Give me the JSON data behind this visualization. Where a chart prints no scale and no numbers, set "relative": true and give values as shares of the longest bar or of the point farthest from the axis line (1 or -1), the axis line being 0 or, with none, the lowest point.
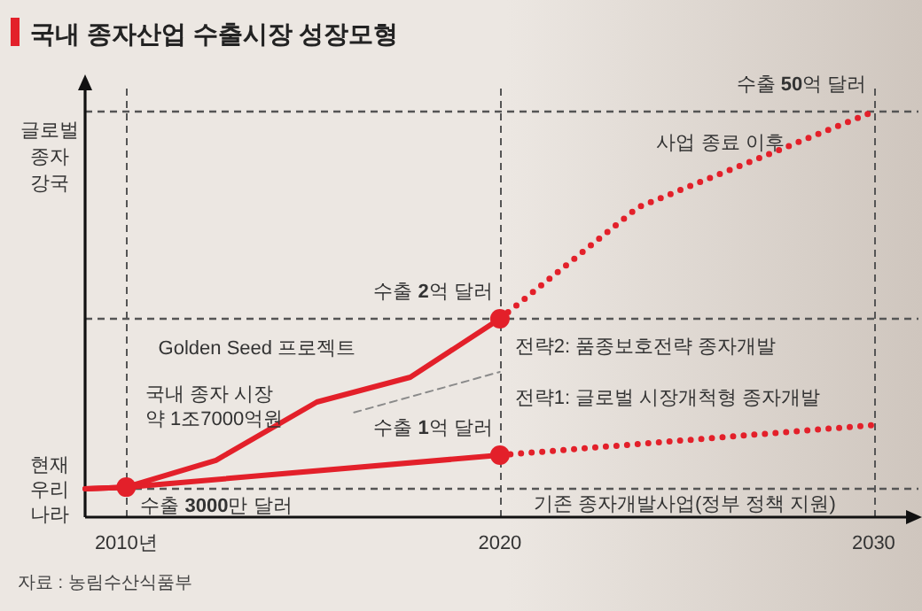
{
  "chart_data": {
    "type": "line",
    "relative": true,
    "title": "국내 종자산업 수출시장 성장모형",
    "xlim": [
      2008.9,
      2031.2
    ],
    "xticks": [
      {
        "value": 2010,
        "label": "2010년"
      },
      2020,
      2030
    ],
    "series": [
      {
        "color": "#e3202a",
        "line_style": "solid",
        "x": [
          2008.9,
          2010,
          2012.4,
          2015.1,
          2017.6,
          2020
        ],
        "values": [
          0.07,
          0.074,
          0.14,
          0.284,
          0.345,
          0.489
        ]
      },
      {
        "color": "#e3202a",
        "line_style": "dotted",
        "x": [
          2020,
          2023.7,
          2030
        ],
        "values": [
          0.489,
          0.764,
          1.0
        ]
      },
      {
        "color": "#e3202a",
        "line_style": "solid",
        "x": [
          2008.9,
          2010,
          2020
        ],
        "values": [
          0.07,
          0.074,
          0.153
        ]
      },
      {
        "color": "#e3202a",
        "line_style": "dotted",
        "x": [
          2020,
          2030
        ],
        "values": [
          0.153,
          0.227
        ]
      },
      {
        "color": "#8a8a8a",
        "line_style": "dashed",
        "x": [
          2016.1,
          2020
        ],
        "values": [
          0.258,
          0.358
        ]
      },
      {
        "type": "scatter",
        "marker": "circle",
        "color": "#e3202a",
        "x": [
          2010,
          2020,
          2020
        ],
        "values": [
          0.074,
          0.489,
          0.153
        ]
      }
    ],
    "ref_lines": [
      {
        "axis": "y",
        "value": 1.0,
        "color": "#555555",
        "line_style": "dashed"
      },
      {
        "axis": "y",
        "value": 0.489,
        "color": "#555555",
        "line_style": "dashed"
      },
      {
        "axis": "y",
        "value": 0.07,
        "color": "#555555",
        "line_style": "dashed"
      },
      {
        "axis": "x",
        "value": 2010,
        "color": "#555555",
        "line_style": "dashed"
      },
      {
        "axis": "x",
        "value": 2020,
        "color": "#555555",
        "line_style": "dashed"
      },
      {
        "axis": "x",
        "value": 2030,
        "color": "#555555",
        "line_style": "dashed"
      }
    ],
    "annotations": [
      {
        "text": "수출 **3000**만 달러",
        "x": 2010,
        "y": 0.074
      },
      {
        "text": "수출 **2**억 달러",
        "x": 2020,
        "y": 0.489
      },
      {
        "text": "수출 **1**억 달러",
        "x": 2020,
        "y": 0.153
      },
      {
        "text": "수출 **50**억 달러",
        "x": 2030,
        "y": 1.0
      },
      "현재\n우리\n나라",
      "글로벌\n종자\n강국",
      "국내 종자 시장\n약 1조7000억원",
      "Golden Seed 프로젝트",
      "사업 종료 이후",
      "전략2: 품종보호전략 종자개발",
      "전략1: 글로벌 시장개척형 종자개발",
      "기존 종자개발사업(정부 정책 지원)",
      "자료 : 농림수산식품부"
    ]
  }
}
